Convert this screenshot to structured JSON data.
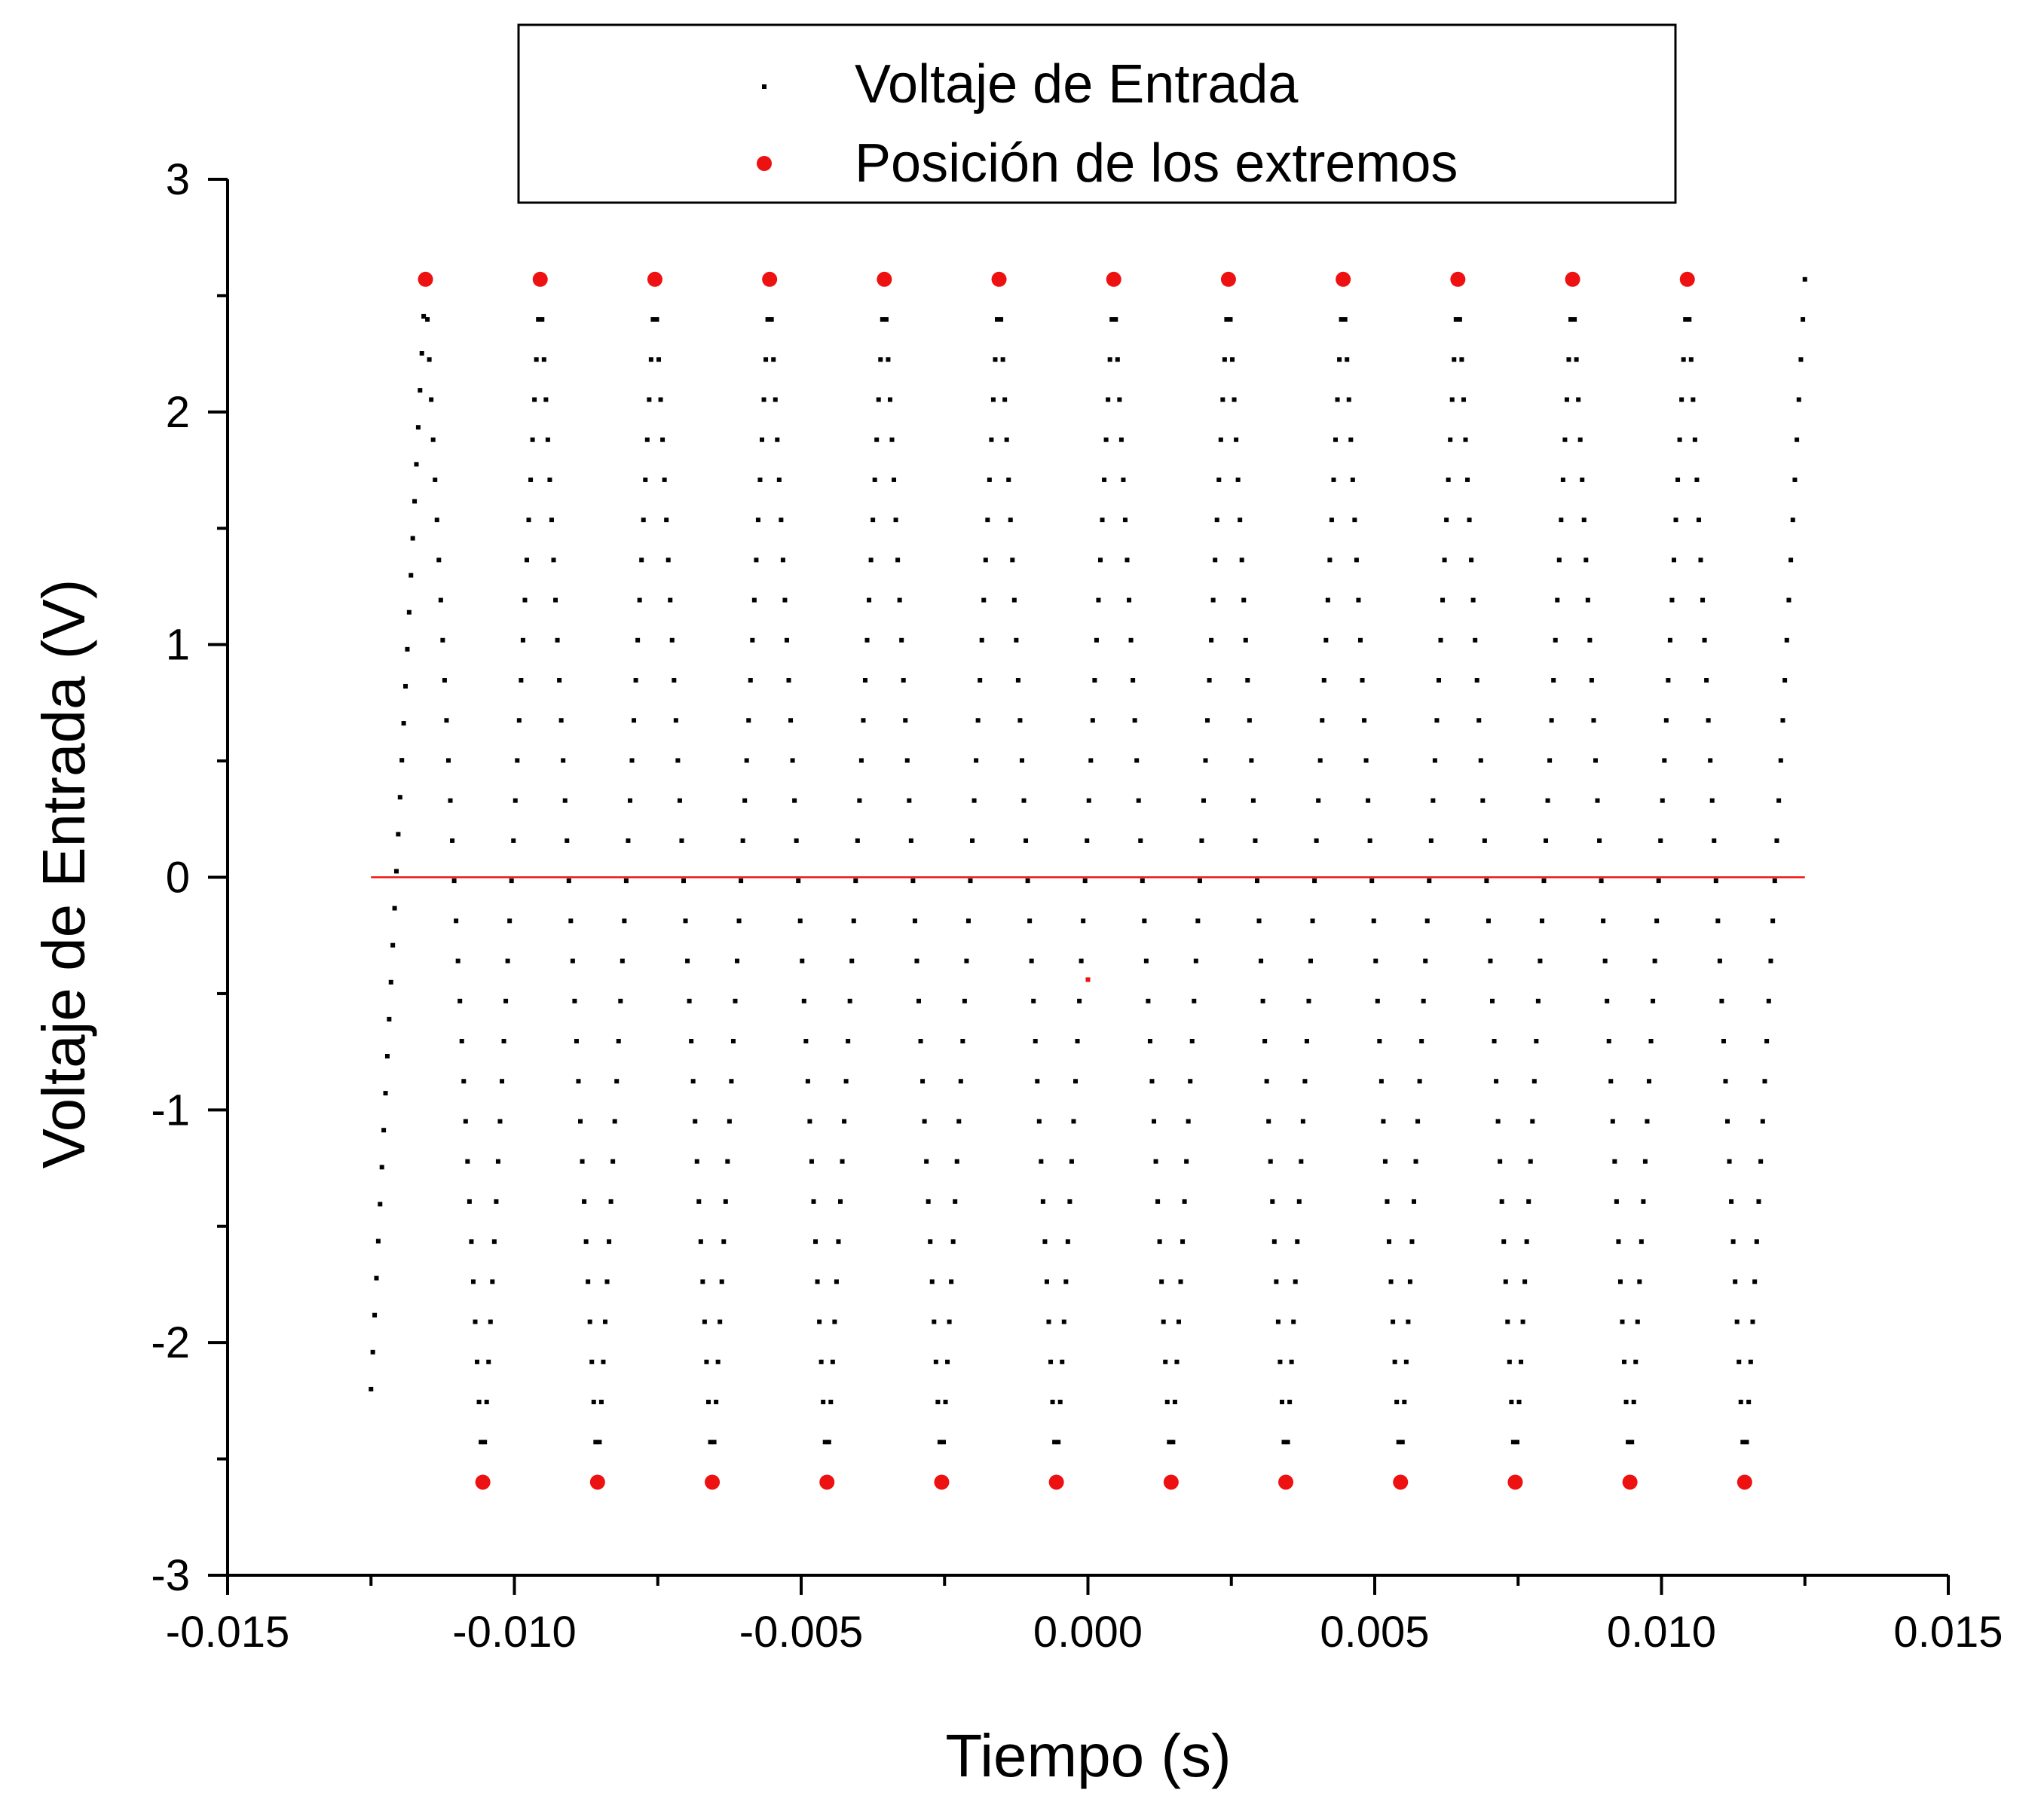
{
  "chart_data": {
    "type": "scatter",
    "xlabel": "Tiempo (s)",
    "ylabel": "Voltaje de Entrada (V)",
    "xlim": [
      -0.015,
      0.015
    ],
    "ylim": [
      -3,
      3
    ],
    "x_ticks": [
      "-0.015",
      "-0.010",
      "-0.005",
      "0.000",
      "0.005",
      "0.010",
      "0.015"
    ],
    "y_ticks": [
      "3",
      "2",
      "1",
      "0",
      "-1",
      "-2",
      "-3"
    ],
    "grid": false,
    "legend_position": "top-center",
    "series": [
      {
        "name": "Voltaje de Entrada",
        "marker": "small-square",
        "color": "#000000",
        "waveform": "triangle",
        "x_range": [
          -0.0125,
          0.0125
        ],
        "vertices": [
          [
            -0.0125,
            -2.2
          ],
          [
            -0.01155,
            2.57
          ],
          [
            -0.01055,
            -2.6
          ],
          [
            -0.00955,
            2.57
          ],
          [
            -0.00855,
            -2.6
          ],
          [
            -0.00755,
            2.57
          ],
          [
            -0.00655,
            -2.6
          ],
          [
            -0.00555,
            2.57
          ],
          [
            -0.00455,
            -2.6
          ],
          [
            -0.00355,
            2.57
          ],
          [
            -0.00255,
            -2.6
          ],
          [
            -0.00155,
            2.57
          ],
          [
            -0.00055,
            -2.6
          ],
          [
            0.00045,
            2.57
          ],
          [
            0.00145,
            -2.6
          ],
          [
            0.00245,
            2.57
          ],
          [
            0.00345,
            -2.6
          ],
          [
            0.00445,
            2.57
          ],
          [
            0.00545,
            -2.6
          ],
          [
            0.00645,
            2.57
          ],
          [
            0.00745,
            -2.6
          ],
          [
            0.00845,
            2.57
          ],
          [
            0.00945,
            -2.6
          ],
          [
            0.01045,
            2.57
          ],
          [
            0.01145,
            -2.6
          ],
          [
            0.0125,
            2.57
          ]
        ],
        "samples_per_segment": 30
      },
      {
        "name": "Posición de los extremos",
        "marker": "circle",
        "color": "#ee1111",
        "points": [
          [
            -0.01155,
            2.57
          ],
          [
            -0.00955,
            2.57
          ],
          [
            -0.00755,
            2.57
          ],
          [
            -0.00555,
            2.57
          ],
          [
            -0.00355,
            2.57
          ],
          [
            -0.00155,
            2.57
          ],
          [
            0.00045,
            2.57
          ],
          [
            0.00245,
            2.57
          ],
          [
            0.00445,
            2.57
          ],
          [
            0.00645,
            2.57
          ],
          [
            0.00845,
            2.57
          ],
          [
            0.01045,
            2.57
          ],
          [
            -0.01055,
            -2.6
          ],
          [
            -0.00855,
            -2.6
          ],
          [
            -0.00655,
            -2.6
          ],
          [
            -0.00455,
            -2.6
          ],
          [
            -0.00255,
            -2.6
          ],
          [
            -0.00055,
            -2.6
          ],
          [
            0.00145,
            -2.6
          ],
          [
            0.00345,
            -2.6
          ],
          [
            0.00545,
            -2.6
          ],
          [
            0.00745,
            -2.6
          ],
          [
            0.00945,
            -2.6
          ],
          [
            0.01145,
            -2.6
          ]
        ]
      }
    ],
    "reference_line": {
      "y": 0,
      "x_range": [
        -0.0125,
        0.0125
      ],
      "color": "#ee1111"
    },
    "stray_point": {
      "x": 0.0,
      "y": -0.44,
      "color": "#ee1111"
    }
  }
}
